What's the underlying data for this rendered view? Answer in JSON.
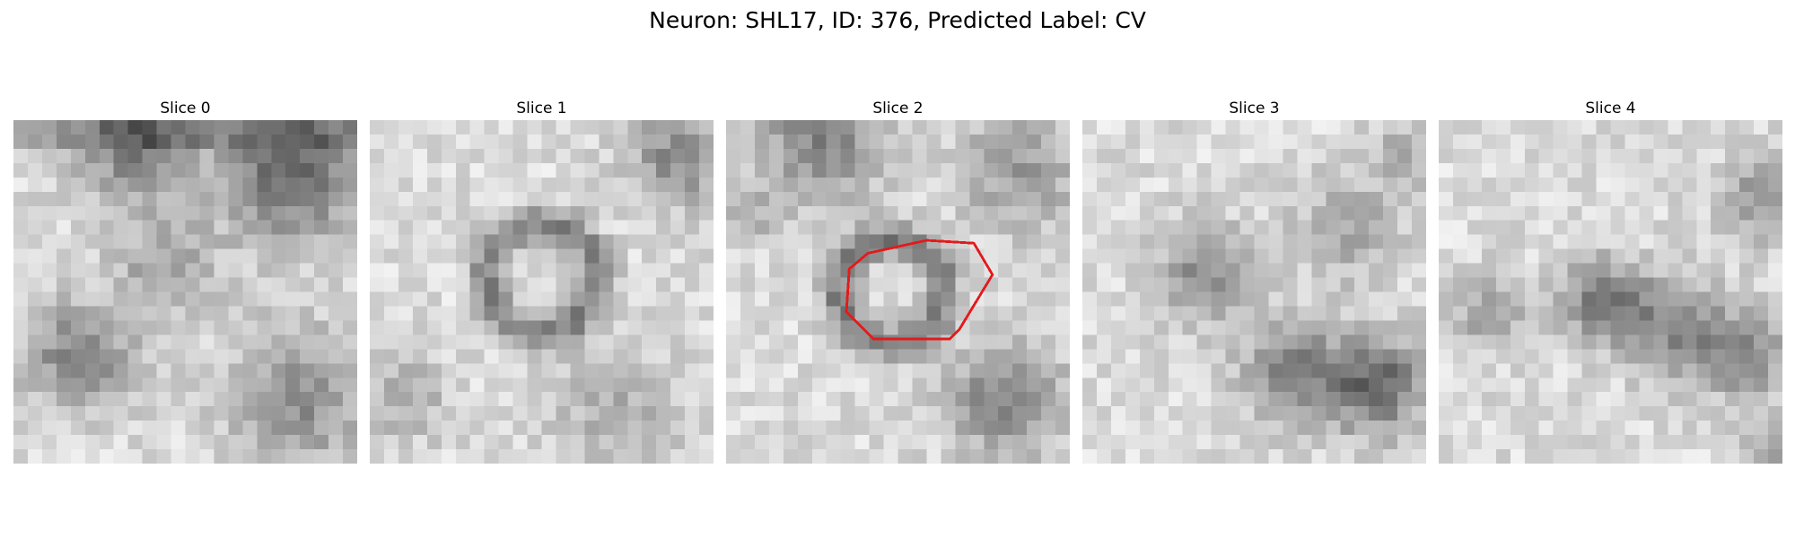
{
  "figure": {
    "title": "Neuron: SHL17, ID: 376, Predicted Label: CV",
    "panels": [
      {
        "title": "Slice 0",
        "seed": 11,
        "has_contour": false
      },
      {
        "title": "Slice 1",
        "seed": 23,
        "has_contour": false
      },
      {
        "title": "Slice 2",
        "seed": 37,
        "has_contour": true
      },
      {
        "title": "Slice 3",
        "seed": 41,
        "has_contour": false
      },
      {
        "title": "Slice 4",
        "seed": 53,
        "has_contour": false
      }
    ],
    "contour_color": "#e31a1c",
    "colormap": "gray"
  }
}
